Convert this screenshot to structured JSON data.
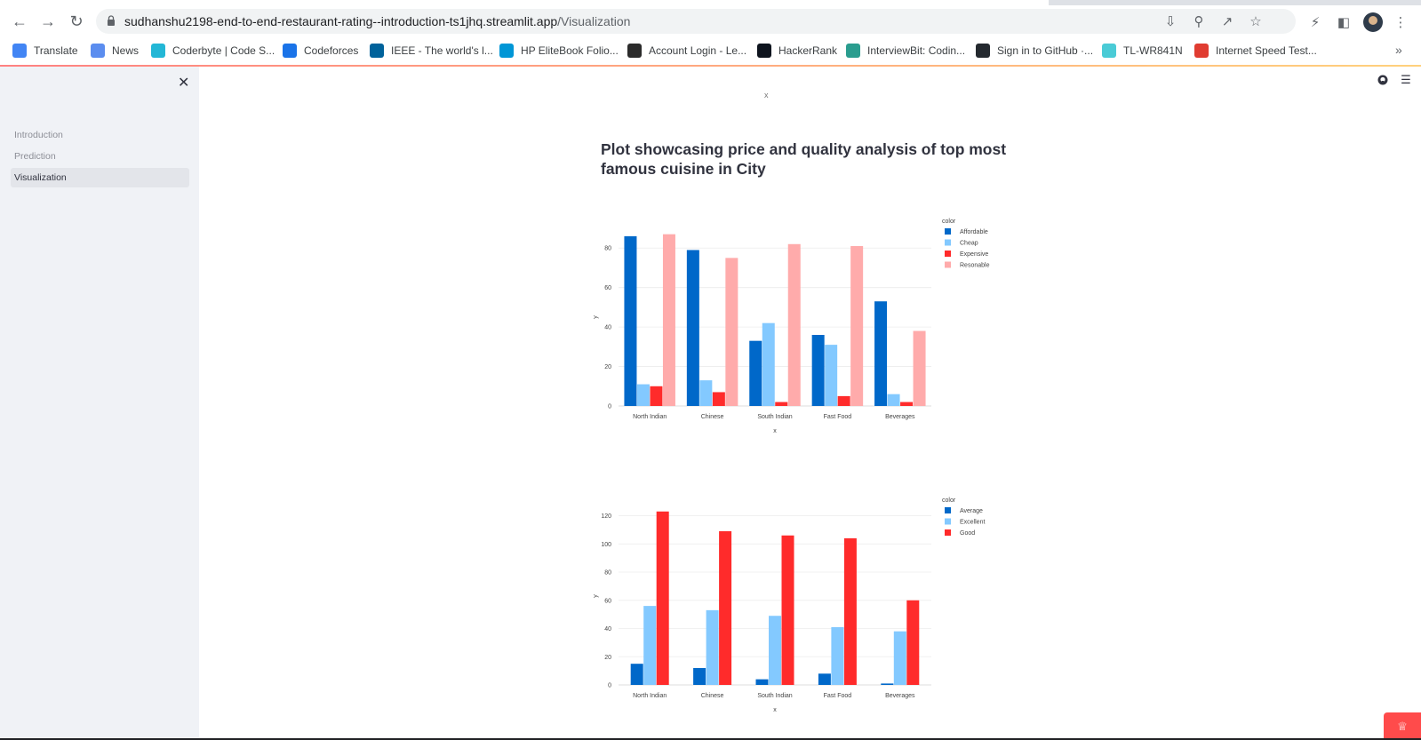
{
  "browser": {
    "url_host": "sudhanshu2198-end-to-end-restaurant-rating--introduction-ts1jhq.streamlit.app",
    "url_path": "/Visualization",
    "bookmarks": [
      {
        "label": "Translate",
        "icon": "google-translate-icon",
        "color": "#4285f4"
      },
      {
        "label": "News",
        "icon": "google-news-icon",
        "color": "#5b8def"
      },
      {
        "label": "Coderbyte | Code S...",
        "icon": "coderbyte-icon",
        "color": "#23b7d6"
      },
      {
        "label": "Codeforces",
        "icon": "codeforces-icon",
        "color": "#1a73e8"
      },
      {
        "label": "IEEE - The world's l...",
        "icon": "ieee-icon",
        "color": "#00629b"
      },
      {
        "label": "HP EliteBook Folio...",
        "icon": "hp-icon",
        "color": "#0096d6"
      },
      {
        "label": "Account Login - Le...",
        "icon": "account-login-icon",
        "color": "#2b2b2b"
      },
      {
        "label": "HackerRank",
        "icon": "hackerrank-icon",
        "color": "#0e141e"
      },
      {
        "label": "InterviewBit: Codin...",
        "icon": "interviewbit-icon",
        "color": "#2a9d8f"
      },
      {
        "label": "Sign in to GitHub ·...",
        "icon": "github-icon",
        "color": "#24292f"
      },
      {
        "label": "TL-WR841N",
        "icon": "tplink-icon",
        "color": "#4acbd6"
      },
      {
        "label": "Internet Speed Test...",
        "icon": "speedtest-icon",
        "color": "#e03c31"
      }
    ]
  },
  "sidebar": {
    "items": [
      {
        "label": "Introduction",
        "active": false
      },
      {
        "label": "Prediction",
        "active": false
      },
      {
        "label": "Visualization",
        "active": true
      }
    ]
  },
  "main": {
    "marker": "x",
    "heading": "Plot showcasing price and quality analysis of top most famous cuisine in City"
  },
  "colors": {
    "accent": "#ff4b4b",
    "dark_blue": "#0068c9",
    "light_blue": "#83c9ff",
    "red": "#ff2b2b",
    "pink": "#ffabab"
  },
  "chart_data": [
    {
      "type": "bar",
      "title": "",
      "xlabel": "x",
      "ylabel": "y",
      "categories": [
        "North Indian",
        "Chinese",
        "South Indian",
        "Fast Food",
        "Beverages"
      ],
      "ylim": [
        0,
        90
      ],
      "yticks": [
        0,
        20,
        40,
        60,
        80
      ],
      "legend_title": "color",
      "legend_position": "top-right",
      "grid": true,
      "series": [
        {
          "name": "Affordable",
          "color": "#0068c9",
          "values": [
            86,
            79,
            33,
            36,
            53
          ]
        },
        {
          "name": "Cheap",
          "color": "#83c9ff",
          "values": [
            11,
            13,
            42,
            31,
            6
          ]
        },
        {
          "name": "Expensive",
          "color": "#ff2b2b",
          "values": [
            10,
            7,
            2,
            5,
            2
          ]
        },
        {
          "name": "Resonable",
          "color": "#ffabab",
          "values": [
            87,
            75,
            82,
            81,
            38
          ]
        }
      ]
    },
    {
      "type": "bar",
      "title": "",
      "xlabel": "x",
      "ylabel": "y",
      "categories": [
        "North Indian",
        "Chinese",
        "South Indian",
        "Fast Food",
        "Beverages"
      ],
      "ylim": [
        0,
        126
      ],
      "yticks": [
        0,
        20,
        40,
        60,
        80,
        100,
        120
      ],
      "legend_title": "color",
      "legend_position": "top-right",
      "grid": true,
      "series": [
        {
          "name": "Average",
          "color": "#0068c9",
          "values": [
            15,
            12,
            4,
            8,
            1
          ]
        },
        {
          "name": "Excellent",
          "color": "#83c9ff",
          "values": [
            56,
            53,
            49,
            41,
            38
          ]
        },
        {
          "name": "Good",
          "color": "#ff2b2b",
          "values": [
            123,
            109,
            106,
            104,
            60
          ]
        }
      ]
    }
  ]
}
